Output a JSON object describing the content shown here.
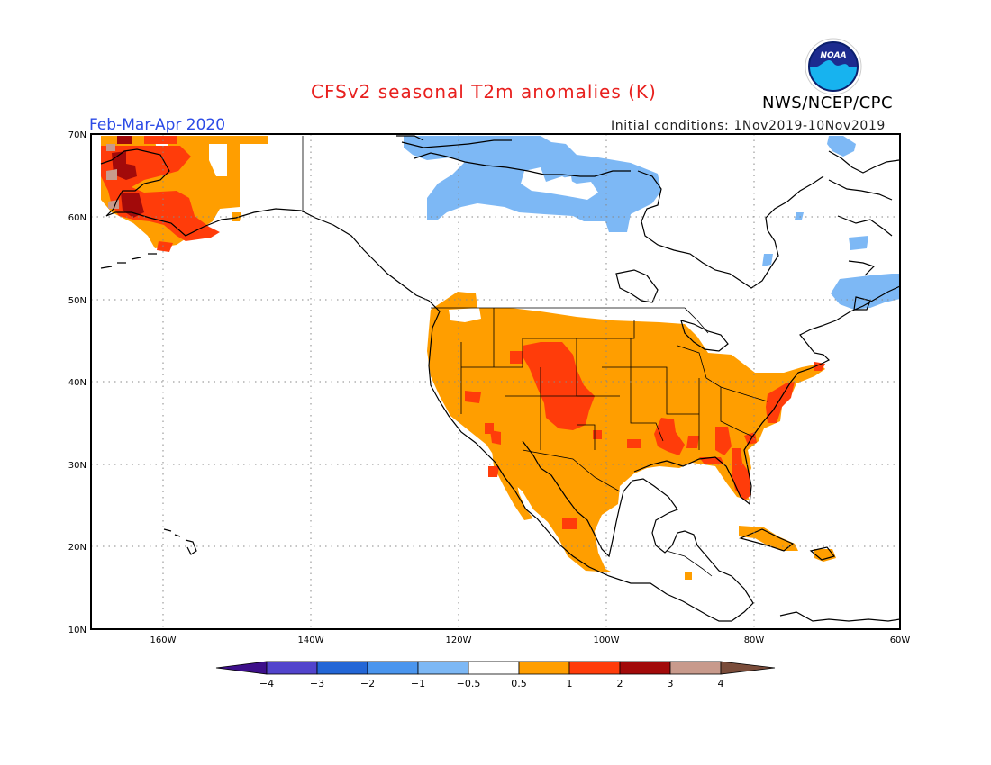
{
  "title": "CFSv2 seasonal T2m anomalies (K)",
  "agency": "NWS/NCEP/CPC",
  "logo_text": "NOAA",
  "period": "Feb-Mar-Apr 2020",
  "initial_conditions": "Initial conditions: 1Nov2019-10Nov2019",
  "map": {
    "projection": "plate-carree",
    "lon_range": [
      -172,
      -60
    ],
    "lat_range": [
      10,
      70
    ],
    "gridlines": "dotted",
    "lat_labels": [
      "70N",
      "60N",
      "50N",
      "40N",
      "30N",
      "20N",
      "10N"
    ],
    "lon_labels": [
      "160W",
      "140W",
      "120W",
      "100W",
      "80W",
      "60W"
    ]
  },
  "colorbar": {
    "labels": [
      "−4",
      "−3",
      "−2",
      "−1",
      "−0.5",
      "0.5",
      "1",
      "2",
      "3",
      "4"
    ],
    "colors": [
      "#3d0f8a",
      "#5244cc",
      "#2366d6",
      "#4a95ee",
      "#7db8f5",
      "#ffffff",
      "#ff9e00",
      "#ff3c0a",
      "#a20a0a",
      "#c89a8c",
      "#7a4c3a"
    ],
    "orientation": "horizontal",
    "extend": "both"
  },
  "anomaly_classes": {
    "warm_moderate": "#ff9e00",
    "warm_strong": "#ff3c0a",
    "warm_very_strong": "#a20a0a",
    "warm_extreme": "#c89a8c",
    "cool_weak": "#7db8f5"
  }
}
